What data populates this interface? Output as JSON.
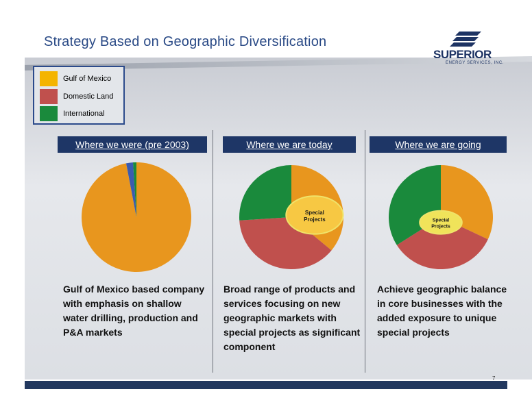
{
  "title": "Strategy Based on Geographic Diversification",
  "logo": {
    "name": "SUPERIOR",
    "subtitle": "ENERGY SERVICES, INC."
  },
  "legend": [
    {
      "label": "Gulf of Mexico",
      "color": "#f4b400"
    },
    {
      "label": "Domestic Land",
      "color": "#c0504d"
    },
    {
      "label": "International",
      "color": "#1a8a3c"
    }
  ],
  "columns": [
    {
      "header": "Where we were (pre 2003)",
      "description": "Gulf of Mexico based company with emphasis on shallow water drilling, production and P&A markets"
    },
    {
      "header": "Where we are today",
      "description": "Broad range of products and services focusing on new geographic markets with special projects as significant component",
      "callout": [
        "Special",
        "Projects"
      ]
    },
    {
      "header": "Where we are going",
      "description": "Achieve geographic balance in core businesses with the added exposure to unique special projects",
      "callout": [
        "Special",
        "Projects"
      ]
    }
  ],
  "chart_data": [
    {
      "type": "pie",
      "labels": [
        "Gulf of Mexico",
        "Domestic Land",
        "International"
      ],
      "values": [
        97,
        2,
        1
      ],
      "colors": [
        "#e8961e",
        "#3b5bb0",
        "#1a8a3c"
      ]
    },
    {
      "type": "pie",
      "labels": [
        "Gulf of Mexico",
        "Domestic Land",
        "International"
      ],
      "values": [
        36,
        38,
        26
      ],
      "colors": [
        "#e8961e",
        "#c0504d",
        "#1a8a3c"
      ]
    },
    {
      "type": "pie",
      "labels": [
        "Gulf of Mexico",
        "Domestic Land",
        "International"
      ],
      "values": [
        32,
        34,
        34
      ],
      "colors": [
        "#e8961e",
        "#c0504d",
        "#1a8a3c"
      ]
    }
  ],
  "page_number": "7"
}
